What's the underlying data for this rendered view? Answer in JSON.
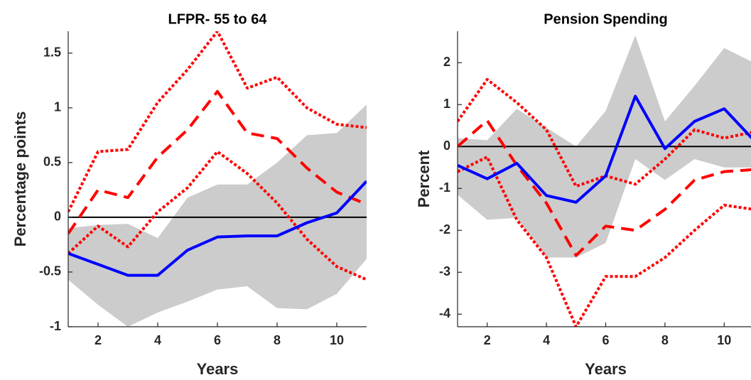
{
  "chart_data": [
    {
      "type": "line",
      "title": "LFPR- 55 to 64",
      "x_label": "Years",
      "y_label": "Percentage points",
      "x": [
        1,
        2,
        3,
        4,
        5,
        6,
        7,
        8,
        9,
        10,
        11
      ],
      "xlim": [
        1,
        11
      ],
      "xticks": [
        2,
        4,
        6,
        8,
        10
      ],
      "ylim": [
        -1,
        1.7
      ],
      "yticks": [
        -1,
        -0.5,
        0,
        0.5,
        1,
        1.5
      ],
      "hline": 0,
      "band": {
        "color": "#cccccc",
        "lower": [
          -0.57,
          -0.8,
          -1.0,
          -0.87,
          -0.77,
          -0.66,
          -0.63,
          -0.83,
          -0.84,
          -0.7,
          -0.38
        ],
        "upper": [
          -0.1,
          -0.07,
          -0.06,
          -0.19,
          0.18,
          0.3,
          0.3,
          0.5,
          0.75,
          0.77,
          1.03
        ]
      },
      "series": [
        {
          "color": "#ff0000",
          "style": "dotted",
          "values": [
            0.05,
            0.6,
            0.62,
            1.05,
            1.35,
            1.7,
            1.18,
            1.28,
            1.0,
            0.85,
            0.82
          ]
        },
        {
          "color": "#ff0000",
          "style": "dotted",
          "values": [
            -0.33,
            -0.08,
            -0.27,
            0.05,
            0.27,
            0.6,
            0.4,
            0.13,
            -0.2,
            -0.45,
            -0.57
          ]
        },
        {
          "color": "#ff0000",
          "style": "dashed",
          "values": [
            -0.15,
            0.25,
            0.18,
            0.55,
            0.8,
            1.15,
            0.77,
            0.72,
            0.45,
            0.23,
            0.12
          ]
        },
        {
          "color": "#0000ff",
          "style": "solid",
          "values": [
            -0.33,
            -0.43,
            -0.53,
            -0.53,
            -0.3,
            -0.18,
            -0.17,
            -0.17,
            -0.05,
            0.04,
            0.33
          ]
        }
      ]
    },
    {
      "type": "line",
      "title": "Pension Spending",
      "x_label": "Years",
      "y_label": "Percent",
      "x": [
        1,
        2,
        3,
        4,
        5,
        6,
        7,
        8,
        9,
        10,
        11
      ],
      "xlim": [
        1,
        11
      ],
      "xticks": [
        2,
        4,
        6,
        8,
        10
      ],
      "ylim": [
        -4.3,
        2.75
      ],
      "yticks": [
        -4,
        -3,
        -2,
        -1,
        0,
        1,
        2
      ],
      "hline": 0,
      "band": {
        "color": "#cccccc",
        "lower": [
          -1.15,
          -1.75,
          -1.7,
          -2.65,
          -2.65,
          -2.3,
          -0.3,
          -0.8,
          -0.3,
          -0.5,
          -0.5
        ],
        "upper": [
          0.2,
          0.15,
          0.9,
          0.45,
          0.0,
          0.85,
          2.65,
          0.6,
          1.45,
          2.35,
          2.0
        ]
      },
      "series": [
        {
          "color": "#ff0000",
          "style": "dotted",
          "values": [
            0.6,
            1.6,
            1.05,
            0.4,
            -0.95,
            -0.7,
            -0.9,
            -0.3,
            0.4,
            0.2,
            0.35
          ]
        },
        {
          "color": "#ff0000",
          "style": "dotted",
          "values": [
            -0.6,
            -0.25,
            -1.75,
            -2.65,
            -4.3,
            -3.1,
            -3.1,
            -2.65,
            -2.0,
            -1.4,
            -1.5
          ]
        },
        {
          "color": "#ff0000",
          "style": "dashed",
          "values": [
            0.0,
            0.62,
            -0.45,
            -1.35,
            -2.6,
            -1.9,
            -2.0,
            -1.5,
            -0.8,
            -0.6,
            -0.55
          ]
        },
        {
          "color": "#0000ff",
          "style": "solid",
          "values": [
            -0.45,
            -0.77,
            -0.4,
            -1.17,
            -1.33,
            -0.7,
            1.2,
            -0.05,
            0.6,
            0.9,
            0.15
          ]
        }
      ]
    }
  ]
}
